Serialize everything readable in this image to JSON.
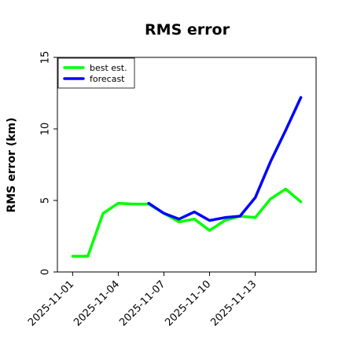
{
  "chart_data": {
    "type": "line",
    "title": "RMS error",
    "xlabel": "",
    "ylabel": "RMS error (km)",
    "ylim": [
      0,
      15
    ],
    "xlim": [
      "2025-10-31",
      "2025-11-17"
    ],
    "x_ticks": [
      "2025-11-01",
      "2025-11-04",
      "2025-11-07",
      "2025-11-10",
      "2025-11-13"
    ],
    "y_ticks": [
      0,
      5,
      10,
      15
    ],
    "grid": false,
    "legend_position": "top-left",
    "series": [
      {
        "name": "best est.",
        "color": "#00ff00",
        "x": [
          "2025-11-01",
          "2025-11-02",
          "2025-11-03",
          "2025-11-04",
          "2025-11-05",
          "2025-11-06",
          "2025-11-07",
          "2025-11-08",
          "2025-11-09",
          "2025-11-10",
          "2025-11-11",
          "2025-11-12",
          "2025-11-13",
          "2025-11-14",
          "2025-11-15",
          "2025-11-16"
        ],
        "values": [
          1.1,
          1.1,
          4.1,
          4.8,
          4.75,
          4.75,
          4.1,
          3.5,
          3.7,
          2.9,
          3.6,
          3.9,
          3.8,
          5.1,
          5.8,
          4.9
        ]
      },
      {
        "name": "forecast",
        "color": "#0000ff",
        "x": [
          "2025-11-06",
          "2025-11-07",
          "2025-11-08",
          "2025-11-09",
          "2025-11-10",
          "2025-11-11",
          "2025-11-12",
          "2025-11-13",
          "2025-11-14",
          "2025-11-15",
          "2025-11-16"
        ],
        "values": [
          4.8,
          4.1,
          3.7,
          4.2,
          3.6,
          3.8,
          3.9,
          5.2,
          7.7,
          9.9,
          12.2
        ]
      }
    ]
  }
}
